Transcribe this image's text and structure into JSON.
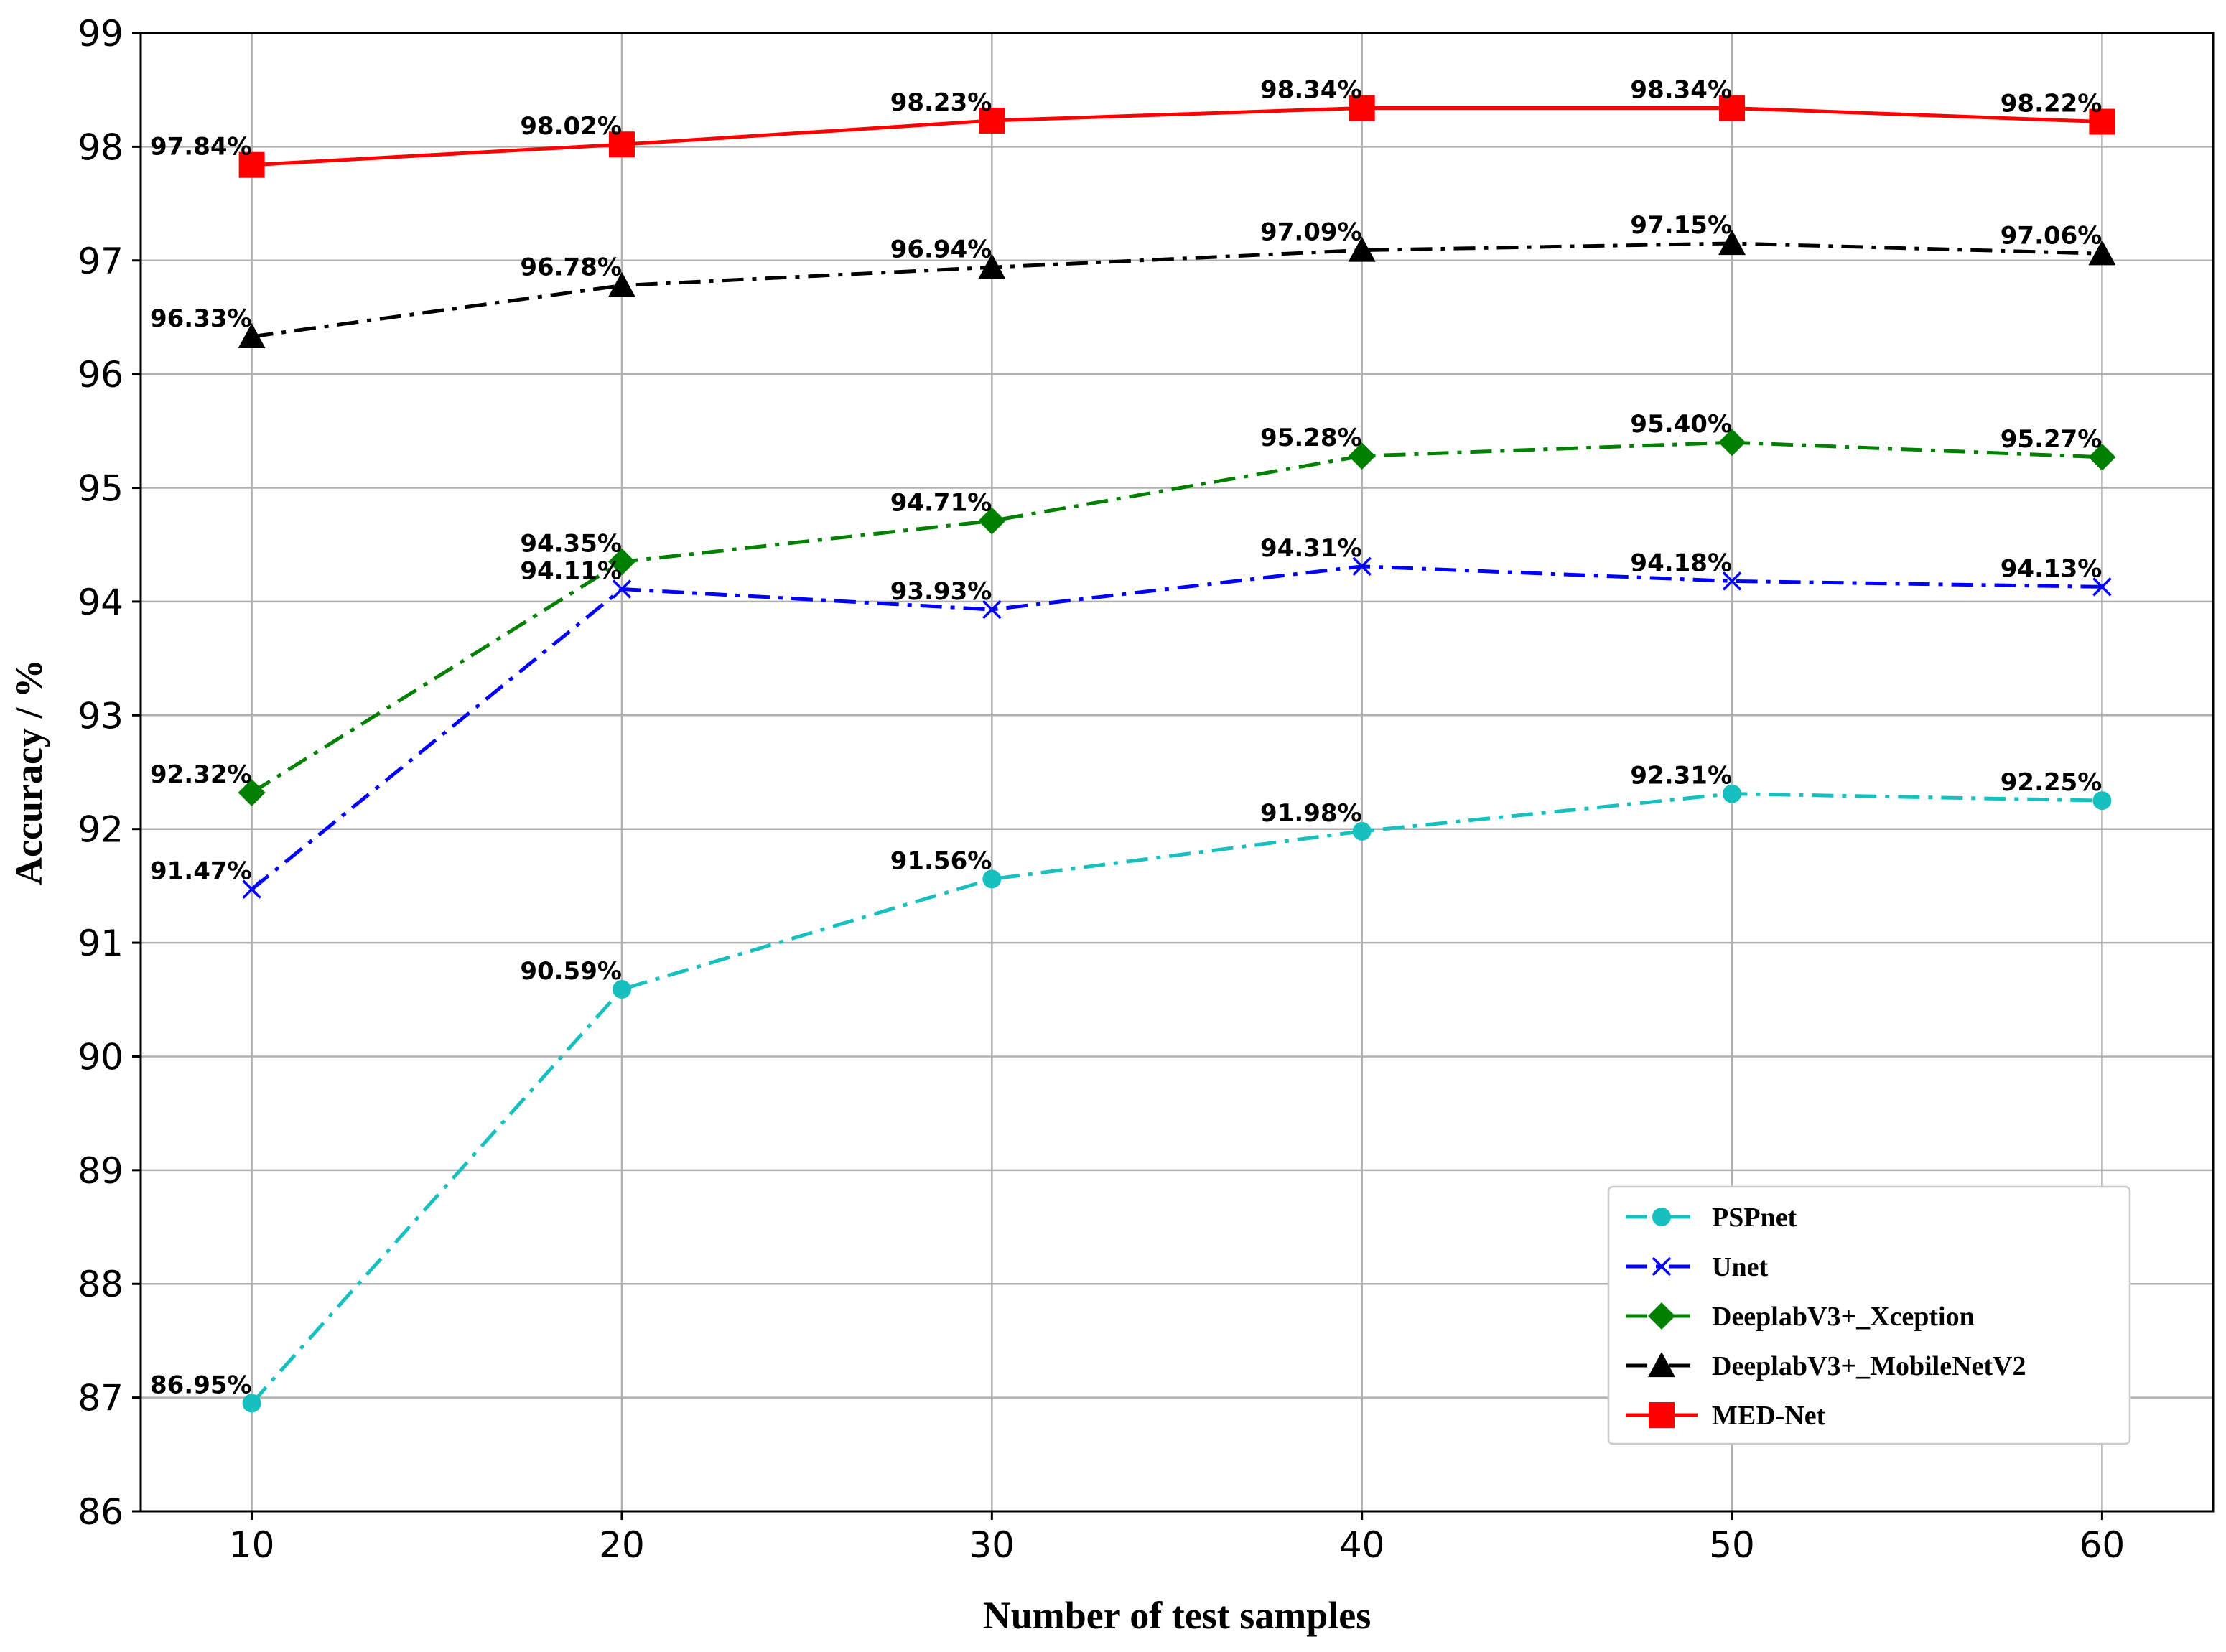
{
  "chart_data": {
    "type": "line",
    "title": "",
    "xlabel": "Number of test samples",
    "ylabel": "Accuracy / %",
    "x": [
      10,
      20,
      30,
      40,
      50,
      60
    ],
    "xlim": [
      7,
      63
    ],
    "ylim": [
      86,
      99
    ],
    "xticks": [
      "10",
      "20",
      "30",
      "40",
      "50",
      "60"
    ],
    "yticks": [
      "86",
      "87",
      "88",
      "89",
      "90",
      "91",
      "92",
      "93",
      "94",
      "95",
      "96",
      "97",
      "98",
      "99"
    ],
    "grid": true,
    "legend_position": "bottom-right",
    "series": [
      {
        "name": "PSPnet",
        "color": "#17bfbf",
        "marker": "circle",
        "linestyle": "dash-dot",
        "values": [
          86.95,
          90.59,
          91.56,
          91.98,
          92.31,
          92.25
        ],
        "labels": [
          "86.95%",
          "90.59%",
          "91.56%",
          "91.98%",
          "92.31%",
          "92.25%"
        ]
      },
      {
        "name": "Unet",
        "color": "#0000ff",
        "marker": "x",
        "linestyle": "dash-dot",
        "values": [
          91.47,
          94.11,
          93.93,
          94.31,
          94.18,
          94.13
        ],
        "labels": [
          "91.47%",
          "94.11%",
          "93.93%",
          "94.31%",
          "94.18%",
          "94.13%"
        ]
      },
      {
        "name": "DeeplabV3+_Xception",
        "color": "#008000",
        "marker": "diamond",
        "linestyle": "dash-dot",
        "values": [
          92.32,
          94.35,
          94.71,
          95.28,
          95.4,
          95.27
        ],
        "labels": [
          "92.32%",
          "94.35%",
          "94.71%",
          "95.28%",
          "95.40%",
          "95.27%"
        ]
      },
      {
        "name": "DeeplabV3+_MobileNetV2",
        "color": "#000000",
        "marker": "triangle",
        "linestyle": "dash-dot",
        "values": [
          96.33,
          96.78,
          96.94,
          97.09,
          97.15,
          97.06
        ],
        "labels": [
          "96.33%",
          "96.78%",
          "96.94%",
          "97.09%",
          "97.15%",
          "97.06%"
        ]
      },
      {
        "name": "MED-Net",
        "color": "#ff0000",
        "marker": "square",
        "linestyle": "solid",
        "values": [
          97.84,
          98.02,
          98.23,
          98.34,
          98.34,
          98.22
        ],
        "labels": [
          "97.84%",
          "98.02%",
          "98.23%",
          "98.34%",
          "98.34%",
          "98.22%"
        ]
      }
    ]
  }
}
